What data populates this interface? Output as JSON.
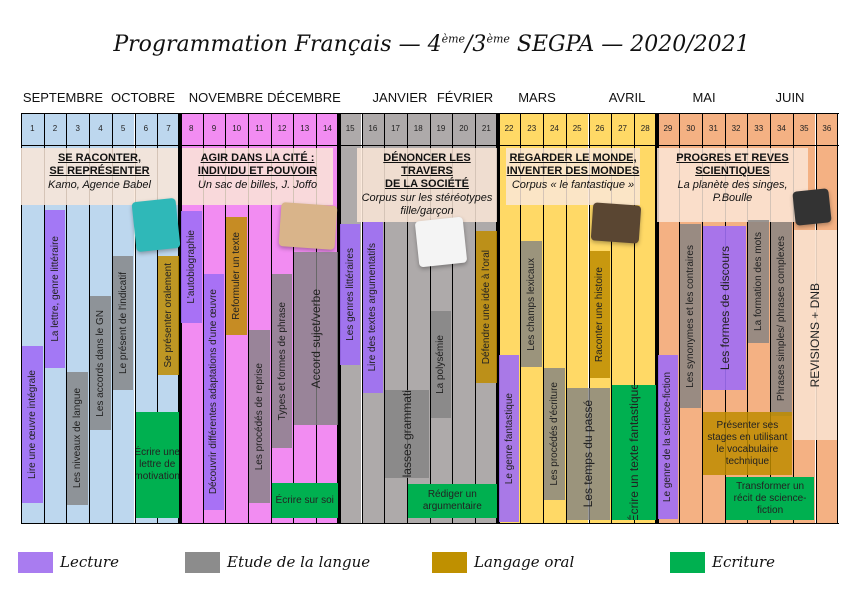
{
  "title": {
    "main": "Programmation Français — 4",
    "sup1": "ème",
    "mid": "/3",
    "sup2": "ème",
    "end": " SEGPA — 2020/2021"
  },
  "months": [
    "SEPTEMBRE",
    "OCTOBRE",
    "NOVEMBRE",
    "DÉCEMBRE",
    "JANVIER",
    "FÉVRIER",
    "MARS",
    "AVRIL",
    "MAI",
    "JUIN"
  ],
  "weeks": [
    "1",
    "2",
    "3",
    "4",
    "5",
    "6",
    "7",
    "8",
    "9",
    "10",
    "11",
    "12",
    "13",
    "14",
    "15",
    "16",
    "17",
    "18",
    "19",
    "20",
    "21",
    "22",
    "23",
    "24",
    "25",
    "26",
    "27",
    "28",
    "29",
    "30",
    "31",
    "32",
    "33",
    "34",
    "35",
    "36"
  ],
  "colors": {
    "period1": "#bdd7ee",
    "period2": "#f28cf2",
    "period3": "#aeaaaa",
    "period4": "#ffd966",
    "period5": "#f4b183"
  },
  "sections": [
    {
      "title1": "SE RACONTER,",
      "title2": "SE REPRÉSENTER",
      "sub": "Kamo, Agence Babel",
      "weeks": [
        1,
        7
      ],
      "image": "kamo-book-cover"
    },
    {
      "title1": "AGIR DANS LA CITÉ :",
      "title2": "INDIVIDU ET POUVOIR",
      "sub": "Un sac de billes, J. Joffo",
      "weeks": [
        8,
        14
      ],
      "image": "boys-photo"
    },
    {
      "title1": "DÉNONCER LES TRAVERS",
      "title2": "DE LA SOCIÉTÉ",
      "sub": "Corpus sur les stéréotypes fille/garçon",
      "weeks": [
        15,
        21
      ],
      "image": "stereotype-drawing"
    },
    {
      "title1": "REGARDER LE MONDE,",
      "title2": "INVENTER DES MONDES",
      "sub": "Corpus « le fantastique »",
      "weeks": [
        22,
        28
      ],
      "image": "courbet-portrait"
    },
    {
      "title1": "PROGRES ET REVES",
      "title2": "SCIENTIQUES",
      "sub": "La planète des singes, P.Boulle",
      "weeks": [
        29,
        36
      ],
      "image": "ape-photo"
    }
  ],
  "legend": [
    {
      "label": "Lecture",
      "color": "#a97cf0"
    },
    {
      "label": "Etude de la langue",
      "color": "#8c8c8c"
    },
    {
      "label": "Langage oral",
      "color": "#bf9000"
    },
    {
      "label": "Ecriture",
      "color": "#00b050"
    }
  ],
  "blocks": [
    {
      "text": "Lire une œuvre intégrale",
      "cat": 0,
      "weeks": [
        1,
        1
      ]
    },
    {
      "text": "La lettre, genre littéraire",
      "cat": 0,
      "weeks": [
        2,
        2
      ]
    },
    {
      "text": "Les niveaux de langue",
      "cat": 1,
      "weeks": [
        3,
        3
      ]
    },
    {
      "text": "Les accords dans le GN",
      "cat": 1,
      "weeks": [
        4,
        4
      ]
    },
    {
      "text": "Le présent de l'indicatif",
      "cat": 1,
      "weeks": [
        5,
        5
      ]
    },
    {
      "text": "Se présenter oralement",
      "cat": 2,
      "weeks": [
        7,
        7
      ]
    },
    {
      "text": "Écrire une lettre de motivation",
      "cat": 3,
      "weeks": [
        6,
        7
      ]
    },
    {
      "text": "L'autobiographie",
      "cat": 0,
      "weeks": [
        8,
        8
      ]
    },
    {
      "text": "Découvrir différentes adaptations d'une œuvre",
      "cat": 0,
      "weeks": [
        9,
        9
      ]
    },
    {
      "text": "Reformuler un texte",
      "cat": 2,
      "weeks": [
        10,
        10
      ]
    },
    {
      "text": "Les procédés de reprise",
      "cat": 1,
      "weeks": [
        11,
        11
      ]
    },
    {
      "text": "Types et formes de phrase",
      "cat": 1,
      "weeks": [
        12,
        12
      ]
    },
    {
      "text": "Accord sujet/verbe",
      "cat": 1,
      "weeks": [
        13,
        14
      ]
    },
    {
      "text": "Écrire sur soi",
      "cat": 3,
      "weeks": [
        12,
        14
      ]
    },
    {
      "text": "Les genres littéraires",
      "cat": 0,
      "weeks": [
        15,
        15
      ]
    },
    {
      "text": "Lire des textes argumentatifs",
      "cat": 0,
      "weeks": [
        16,
        16
      ]
    },
    {
      "text": "Les classes grammaticales",
      "cat": 1,
      "weeks": [
        17,
        18
      ]
    },
    {
      "text": "La polysémie",
      "cat": 1,
      "weeks": [
        19,
        19
      ]
    },
    {
      "text": "Défendre une idée à l'oral",
      "cat": 2,
      "weeks": [
        21,
        21
      ]
    },
    {
      "text": "Rédiger un argumentaire",
      "cat": 3,
      "weeks": [
        18,
        21
      ]
    },
    {
      "text": "Le genre fantastique",
      "cat": 0,
      "weeks": [
        22,
        22
      ]
    },
    {
      "text": "Les champs lexicaux",
      "cat": 1,
      "weeks": [
        23,
        23
      ]
    },
    {
      "text": "Les procédés d'écriture",
      "cat": 1,
      "weeks": [
        24,
        24
      ]
    },
    {
      "text": "Raconter une histoire",
      "cat": 2,
      "weeks": [
        26,
        26
      ]
    },
    {
      "text": "Les temps du passé",
      "cat": 1,
      "weeks": [
        25,
        26
      ]
    },
    {
      "text": "Écrire un texte fantastique",
      "cat": 3,
      "weeks": [
        27,
        28
      ]
    },
    {
      "text": "Le genre de la science-fiction",
      "cat": 0,
      "weeks": [
        29,
        29
      ]
    },
    {
      "text": "Les synonymes et les contraires",
      "cat": 1,
      "weeks": [
        30,
        30
      ]
    },
    {
      "text": "Les formes de discours",
      "cat": 0,
      "weeks": [
        31,
        32
      ]
    },
    {
      "text": "La formation des mots",
      "cat": 1,
      "weeks": [
        33,
        33
      ]
    },
    {
      "text": "Phrases simples/ phrases complexes",
      "cat": 1,
      "weeks": [
        34,
        34
      ]
    },
    {
      "text": "Présenter ses stages en utilisant le vocabulaire technique",
      "cat": 2,
      "weeks": [
        31,
        34
      ]
    },
    {
      "text": "Transformer un récit de science-fiction",
      "cat": 3,
      "weeks": [
        32,
        35
      ]
    },
    {
      "text": "REVISIONS + DNB",
      "cat": 4,
      "weeks": [
        35,
        36
      ]
    }
  ]
}
